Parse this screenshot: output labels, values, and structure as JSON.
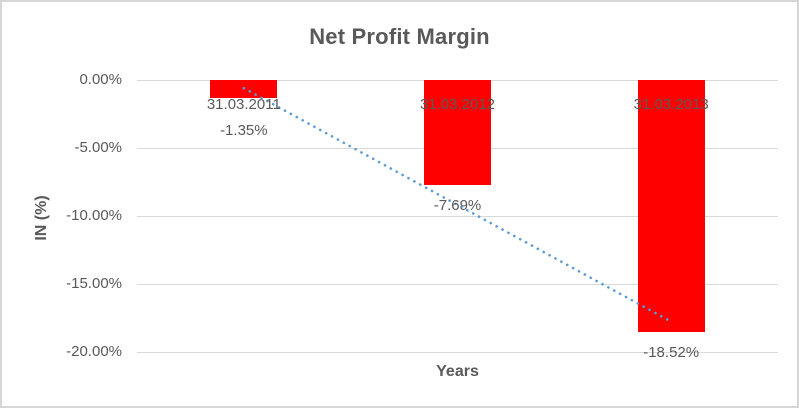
{
  "title": "Net Profit Margin",
  "axes": {
    "y_title": "IN (%)",
    "x_title": "Years"
  },
  "chart_data": {
    "type": "bar",
    "title": "Net Profit Margin",
    "categories": [
      "31.03.2011",
      "31.03.2012",
      "31.03.2013"
    ],
    "values": [
      -1.35,
      -7.69,
      -18.52
    ],
    "data_labels": [
      "-1.35%",
      "-7.69%",
      "-18.52%"
    ],
    "xlabel": "Years",
    "ylabel": "IN (%)",
    "ylim": [
      -20,
      0
    ],
    "yticks": [
      {
        "value": 0,
        "label": "0.00%"
      },
      {
        "value": -5,
        "label": "-5.00%"
      },
      {
        "value": -10,
        "label": "-10.00%"
      },
      {
        "value": -15,
        "label": "-15.00%"
      },
      {
        "value": -20,
        "label": "-20.00%"
      }
    ],
    "grid": true,
    "legend": false,
    "bar_color": "#ff0000",
    "trendline": {
      "type": "linear",
      "style": "dotted",
      "color": "#5b9bd5"
    }
  },
  "colors": {
    "text": "#595959",
    "gridline": "#d9d9d9",
    "bar": "#ff0000",
    "trend": "#5b9bd5",
    "frame_border": "#d6d6d6",
    "background": "#ffffff"
  }
}
